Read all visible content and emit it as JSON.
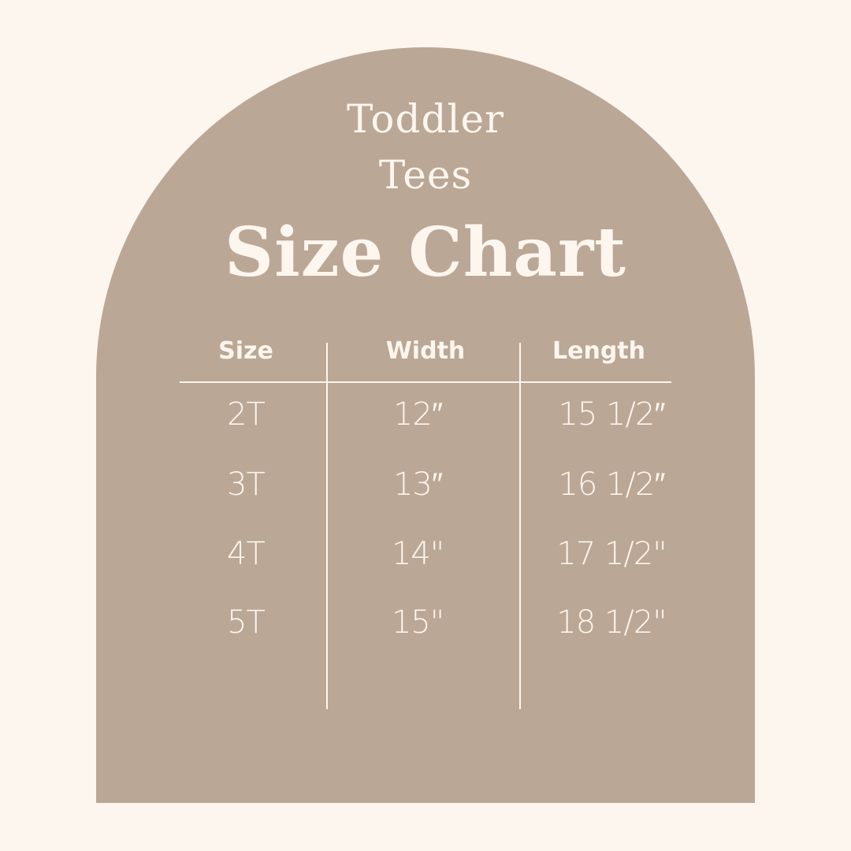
{
  "title": {
    "line1": "Toddler",
    "line2": "Tees",
    "line3": "Size Chart"
  },
  "colors": {
    "background": "#fdf6ef",
    "arch": "#bba795",
    "text": "#fdf6ef"
  },
  "table": {
    "headers": [
      "Size",
      "Width",
      "Length"
    ],
    "rows": [
      [
        "2T",
        "12″",
        "15 1/2″"
      ],
      [
        "3T",
        "13″",
        "16 1/2″"
      ],
      [
        "4T",
        "14\"",
        "17 1/2\""
      ],
      [
        "5T",
        "15\"",
        "18 1/2\""
      ]
    ]
  }
}
